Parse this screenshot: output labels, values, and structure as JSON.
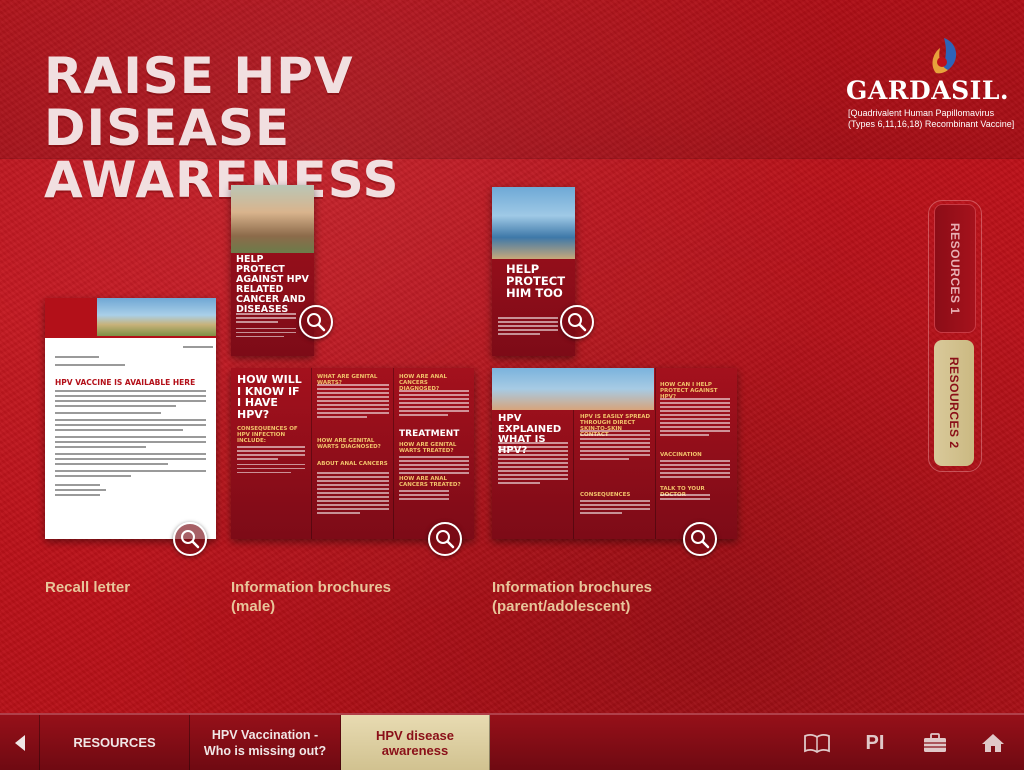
{
  "page": {
    "title_line1": "RAISE HPV DISEASE",
    "title_line2": "AWARENESS"
  },
  "logo": {
    "brand": "GARDASIL.",
    "sub_line1": "[Quadrivalent Human Papillomavirus",
    "sub_line2": "(Types 6,11,16,18) Recombinant Vaccine]"
  },
  "resources": [
    {
      "caption": "Recall letter",
      "heading": "HPV VACCINE IS AVAILABLE HERE"
    },
    {
      "caption_line1": "Information brochures",
      "caption_line2": "(male)",
      "front_title": "HELP PROTECT AGAINST HPV RELATED CANCER AND DISEASES",
      "inside_title": "HOW WILL I KNOW IF I HAVE HPV?",
      "inside_sub1": "CONSEQUENCES OF HPV INFECTION INCLUDE:",
      "inside_sub2": "WHAT ARE GENITAL WARTS?",
      "inside_sub3": "HOW ARE GENITAL WARTS DIAGNOSED?",
      "inside_sub4": "ABOUT ANAL CANCERS",
      "inside_sub5": "HOW ARE ANAL CANCERS DIAGNOSED?",
      "inside_sub6": "TREATMENT",
      "inside_sub7": "HOW ARE GENITAL WARTS TREATED?",
      "inside_sub8": "HOW ARE ANAL CANCERS TREATED?"
    },
    {
      "caption_line1": "Information brochures",
      "caption_line2": "(parent/adolescent)",
      "front_title": "HELP PROTECT HIM TOO",
      "inside_title": "HPV EXPLAINED WHAT IS HPV?",
      "inside_sub1": "HPV IS EASILY SPREAD THROUGH DIRECT SKIN-TO-SKIN CONTACT",
      "inside_sub2": "CONSEQUENCES",
      "inside_sub3": "HOW CAN I HELP PROTECT AGAINST HPV?",
      "inside_sub4": "VACCINATION",
      "inside_sub5": "TALK TO YOUR DOCTOR"
    }
  ],
  "side_tabs": {
    "tab1": "RESOURCES 1",
    "tab2": "RESOURCES 2"
  },
  "bottom_nav": {
    "resources": "RESOURCES",
    "hpv_vaccination": "HPV Vaccination - Who is missing out?",
    "hpv_disease": "HPV disease awareness",
    "pi": "PI"
  },
  "colors": {
    "background": "#b80e17",
    "title": "#f1dfe0",
    "caption": "#e8c59a",
    "active_tab": "#d9c99a"
  }
}
